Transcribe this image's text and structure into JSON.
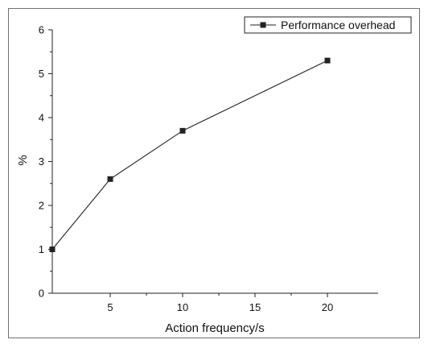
{
  "chart_data": {
    "type": "line",
    "title": "",
    "xlabel": "Action frequency/s",
    "ylabel": "%",
    "xlim": [
      1,
      23.5
    ],
    "ylim": [
      0,
      6
    ],
    "x_ticks": [
      5,
      10,
      15,
      20
    ],
    "y_ticks": [
      0,
      1,
      2,
      3,
      4,
      5,
      6
    ],
    "grid": false,
    "legend_position": "top-right",
    "series": [
      {
        "name": "Performance overhead",
        "color": "#222222",
        "marker": "square",
        "x": [
          1,
          5,
          10,
          20
        ],
        "y": [
          1.0,
          2.6,
          3.7,
          5.3
        ]
      }
    ]
  }
}
